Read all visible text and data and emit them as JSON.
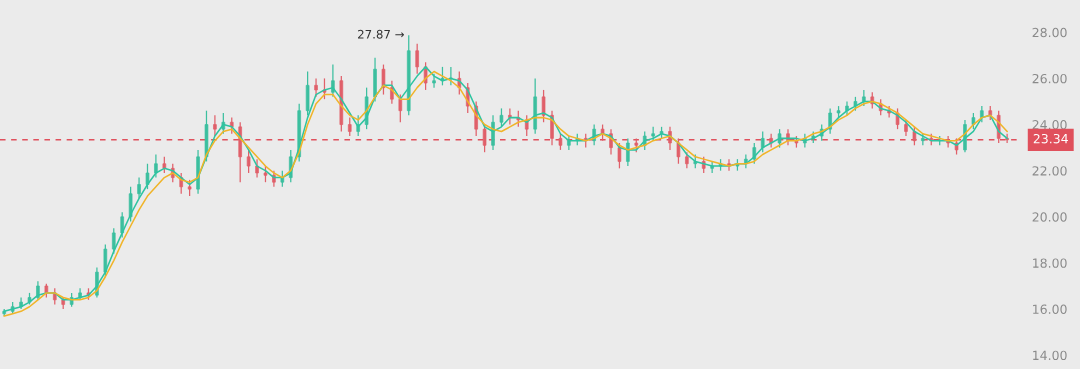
{
  "chart_data": {
    "type": "candlestick",
    "categories": [
      null,
      null,
      null,
      null,
      null,
      null,
      null,
      null,
      null,
      null,
      null,
      null,
      null,
      null,
      null,
      null,
      null,
      null,
      null,
      null,
      null,
      null,
      null,
      null,
      null,
      null,
      null,
      null,
      null,
      null,
      null,
      null,
      null,
      null,
      null,
      null,
      null,
      null,
      null,
      null,
      null,
      null,
      null,
      null,
      null,
      null,
      null,
      null,
      null,
      null,
      null,
      null,
      null,
      null,
      null,
      null,
      null,
      null,
      null,
      null,
      null,
      null,
      null,
      null,
      null,
      null,
      null,
      null,
      null,
      null,
      null,
      null,
      null,
      null,
      null,
      null,
      null,
      null,
      null,
      null,
      null,
      null,
      null,
      null,
      null,
      null,
      null,
      null,
      null,
      null,
      null,
      null,
      null,
      null,
      null,
      null,
      null,
      null,
      null,
      null,
      null,
      null,
      null,
      null,
      null,
      null,
      null,
      null,
      null,
      null,
      null,
      null,
      null,
      null,
      null,
      null,
      null,
      null,
      null,
      null
    ],
    "ohlc": [
      [
        15.8,
        16.0,
        15.7,
        15.9
      ],
      [
        15.9,
        16.3,
        15.8,
        16.1
      ],
      [
        16.1,
        16.5,
        16.0,
        16.3
      ],
      [
        16.3,
        16.7,
        16.2,
        16.5
      ],
      [
        16.5,
        17.2,
        16.4,
        17.0
      ],
      [
        17.0,
        17.1,
        16.5,
        16.7
      ],
      [
        16.7,
        16.9,
        16.2,
        16.4
      ],
      [
        16.4,
        16.5,
        16.0,
        16.2
      ],
      [
        16.2,
        16.7,
        16.1,
        16.5
      ],
      [
        16.5,
        16.9,
        16.4,
        16.7
      ],
      [
        16.7,
        16.9,
        16.4,
        16.6
      ],
      [
        16.6,
        17.8,
        16.5,
        17.6
      ],
      [
        17.6,
        18.8,
        17.4,
        18.6
      ],
      [
        18.6,
        19.5,
        18.4,
        19.3
      ],
      [
        19.3,
        20.2,
        19.1,
        20.0
      ],
      [
        20.0,
        21.3,
        19.8,
        21.0
      ],
      [
        21.0,
        21.7,
        20.8,
        21.4
      ],
      [
        21.4,
        22.3,
        21.2,
        21.9
      ],
      [
        21.9,
        22.7,
        21.7,
        22.3
      ],
      [
        22.3,
        22.6,
        21.9,
        22.1
      ],
      [
        22.1,
        22.3,
        21.5,
        21.7
      ],
      [
        21.7,
        21.9,
        21.0,
        21.3
      ],
      [
        21.3,
        21.6,
        20.9,
        21.2
      ],
      [
        21.2,
        22.9,
        21.0,
        22.6
      ],
      [
        22.6,
        24.6,
        22.4,
        24.0
      ],
      [
        24.0,
        24.4,
        23.5,
        23.8
      ],
      [
        23.8,
        24.5,
        23.6,
        24.1
      ],
      [
        24.1,
        24.3,
        23.6,
        23.9
      ],
      [
        23.9,
        24.1,
        21.5,
        22.6
      ],
      [
        22.6,
        22.9,
        21.9,
        22.2
      ],
      [
        22.2,
        22.5,
        21.7,
        21.9
      ],
      [
        21.9,
        22.2,
        21.5,
        21.8
      ],
      [
        21.8,
        22.0,
        21.3,
        21.5
      ],
      [
        21.5,
        22.0,
        21.3,
        21.7
      ],
      [
        21.7,
        22.9,
        21.5,
        22.6
      ],
      [
        22.6,
        24.9,
        22.4,
        24.6
      ],
      [
        24.6,
        26.3,
        24.4,
        25.7
      ],
      [
        25.7,
        26.0,
        25.2,
        25.5
      ],
      [
        25.5,
        26.0,
        25.1,
        25.4
      ],
      [
        25.4,
        26.6,
        25.2,
        25.9
      ],
      [
        25.9,
        26.1,
        23.7,
        24.0
      ],
      [
        24.0,
        24.3,
        23.5,
        23.7
      ],
      [
        23.7,
        24.4,
        23.5,
        24.0
      ],
      [
        24.0,
        25.6,
        23.8,
        25.2
      ],
      [
        25.2,
        26.9,
        25.0,
        26.4
      ],
      [
        26.4,
        26.6,
        25.3,
        25.6
      ],
      [
        25.6,
        25.9,
        24.9,
        25.1
      ],
      [
        25.1,
        25.3,
        24.1,
        24.6
      ],
      [
        24.6,
        27.87,
        24.4,
        27.2
      ],
      [
        27.2,
        27.5,
        26.2,
        26.5
      ],
      [
        26.5,
        26.7,
        25.5,
        25.8
      ],
      [
        25.8,
        26.2,
        25.6,
        25.9
      ],
      [
        25.9,
        26.5,
        25.7,
        26.0
      ],
      [
        26.0,
        26.5,
        25.7,
        26.0
      ],
      [
        26.0,
        26.3,
        25.3,
        25.6
      ],
      [
        25.6,
        25.8,
        24.5,
        24.8
      ],
      [
        24.8,
        25.0,
        23.5,
        23.8
      ],
      [
        23.8,
        24.0,
        22.8,
        23.1
      ],
      [
        23.1,
        24.4,
        22.9,
        24.1
      ],
      [
        24.1,
        24.7,
        23.9,
        24.4
      ],
      [
        24.4,
        24.7,
        24.0,
        24.3
      ],
      [
        24.3,
        24.6,
        23.9,
        24.2
      ],
      [
        24.2,
        24.4,
        23.5,
        23.8
      ],
      [
        23.8,
        26.0,
        23.6,
        25.2
      ],
      [
        25.2,
        25.5,
        24.1,
        24.4
      ],
      [
        24.4,
        24.6,
        23.1,
        23.4
      ],
      [
        23.4,
        23.6,
        22.9,
        23.1
      ],
      [
        23.1,
        23.5,
        22.9,
        23.3
      ],
      [
        23.3,
        23.6,
        23.1,
        23.4
      ],
      [
        23.4,
        23.6,
        23.0,
        23.3
      ],
      [
        23.3,
        24.0,
        23.1,
        23.8
      ],
      [
        23.8,
        24.0,
        23.3,
        23.6
      ],
      [
        23.6,
        23.8,
        22.7,
        23.0
      ],
      [
        23.0,
        23.2,
        22.1,
        22.4
      ],
      [
        22.4,
        23.4,
        22.2,
        23.2
      ],
      [
        23.2,
        23.4,
        22.8,
        23.1
      ],
      [
        23.1,
        23.7,
        22.9,
        23.5
      ],
      [
        23.5,
        23.9,
        23.3,
        23.6
      ],
      [
        23.6,
        23.9,
        23.4,
        23.7
      ],
      [
        23.7,
        23.9,
        22.9,
        23.2
      ],
      [
        23.2,
        23.4,
        22.3,
        22.6
      ],
      [
        22.6,
        22.8,
        22.1,
        22.3
      ],
      [
        22.3,
        22.7,
        22.1,
        22.4
      ],
      [
        22.4,
        22.6,
        21.9,
        22.1
      ],
      [
        22.1,
        22.4,
        21.9,
        22.2
      ],
      [
        22.2,
        22.5,
        22.0,
        22.3
      ],
      [
        22.3,
        22.5,
        22.0,
        22.2
      ],
      [
        22.2,
        22.5,
        22.0,
        22.3
      ],
      [
        22.3,
        22.7,
        22.1,
        22.5
      ],
      [
        22.5,
        23.2,
        22.3,
        23.0
      ],
      [
        23.0,
        23.7,
        22.8,
        23.4
      ],
      [
        23.4,
        23.6,
        23.0,
        23.2
      ],
      [
        23.2,
        23.8,
        23.0,
        23.6
      ],
      [
        23.6,
        23.8,
        23.1,
        23.3
      ],
      [
        23.3,
        23.5,
        23.0,
        23.2
      ],
      [
        23.2,
        23.6,
        23.0,
        23.4
      ],
      [
        23.4,
        23.7,
        23.2,
        23.5
      ],
      [
        23.5,
        24.0,
        23.3,
        23.8
      ],
      [
        23.8,
        24.7,
        23.6,
        24.5
      ],
      [
        24.5,
        24.8,
        24.3,
        24.6
      ],
      [
        24.6,
        25.0,
        24.4,
        24.8
      ],
      [
        24.8,
        25.2,
        24.6,
        25.0
      ],
      [
        25.0,
        25.5,
        24.8,
        25.2
      ],
      [
        25.2,
        25.4,
        24.7,
        24.9
      ],
      [
        24.9,
        25.1,
        24.4,
        24.6
      ],
      [
        24.6,
        24.8,
        24.3,
        24.5
      ],
      [
        24.5,
        24.7,
        23.8,
        24.0
      ],
      [
        24.0,
        24.2,
        23.5,
        23.7
      ],
      [
        23.7,
        23.9,
        23.1,
        23.3
      ],
      [
        23.3,
        23.6,
        23.1,
        23.4
      ],
      [
        23.4,
        23.6,
        23.1,
        23.3
      ],
      [
        23.3,
        23.5,
        23.1,
        23.3
      ],
      [
        23.3,
        23.5,
        23.0,
        23.2
      ],
      [
        23.2,
        23.4,
        22.7,
        22.9
      ],
      [
        22.9,
        24.2,
        22.8,
        24.0
      ],
      [
        24.0,
        24.5,
        23.8,
        24.3
      ],
      [
        24.3,
        24.8,
        24.1,
        24.6
      ],
      [
        24.6,
        24.8,
        24.2,
        24.4
      ],
      [
        24.4,
        24.6,
        23.2,
        23.4
      ],
      [
        23.4,
        23.6,
        23.2,
        23.34
      ]
    ],
    "series": [
      {
        "type": "line",
        "color": "#2ec4a0",
        "values": [
          15.9,
          16.0,
          16.1,
          16.3,
          16.6,
          16.7,
          16.7,
          16.4,
          16.4,
          16.5,
          16.6,
          17.0,
          17.6,
          18.5,
          19.3,
          20.1,
          20.8,
          21.4,
          21.9,
          22.1,
          22.0,
          21.7,
          21.4,
          21.7,
          22.6,
          23.5,
          24.0,
          23.9,
          23.5,
          22.9,
          22.2,
          22.0,
          21.7,
          21.7,
          21.9,
          23.0,
          24.3,
          25.3,
          25.5,
          25.6,
          25.1,
          24.5,
          23.9,
          24.3,
          25.2,
          25.7,
          25.7,
          25.1,
          25.6,
          26.1,
          26.5,
          26.1,
          25.9,
          26.0,
          25.9,
          25.5,
          24.7,
          23.9,
          23.7,
          23.9,
          24.3,
          24.3,
          24.1,
          24.4,
          24.5,
          24.3,
          23.6,
          23.3,
          23.3,
          23.3,
          23.5,
          23.6,
          23.5,
          23.0,
          22.9,
          22.9,
          23.3,
          23.4,
          23.6,
          23.5,
          23.2,
          22.7,
          22.4,
          22.3,
          22.2,
          22.2,
          22.2,
          22.3,
          22.3,
          22.6,
          23.0,
          23.2,
          23.4,
          23.4,
          23.4,
          23.3,
          23.4,
          23.6,
          23.9,
          24.3,
          24.6,
          24.8,
          25.0,
          25.0,
          24.7,
          24.6,
          24.4,
          24.1,
          23.7,
          23.5,
          23.3,
          23.3,
          23.3,
          23.1,
          23.4,
          23.7,
          24.3,
          24.4,
          23.7,
          23.4
        ]
      },
      {
        "type": "line",
        "color": "#f0b429",
        "values": [
          15.7,
          15.8,
          15.9,
          16.1,
          16.4,
          16.7,
          16.7,
          16.5,
          16.4,
          16.4,
          16.5,
          16.8,
          17.4,
          18.1,
          18.9,
          19.6,
          20.3,
          20.9,
          21.3,
          21.7,
          21.9,
          21.6,
          21.5,
          21.7,
          22.7,
          23.3,
          23.7,
          23.8,
          23.4,
          23.0,
          22.6,
          22.2,
          21.9,
          21.7,
          22.0,
          22.8,
          24.0,
          24.9,
          25.3,
          25.3,
          24.8,
          24.4,
          24.2,
          24.6,
          25.2,
          25.7,
          25.5,
          25.1,
          25.1,
          25.6,
          26.0,
          26.3,
          26.1,
          25.9,
          25.6,
          25.0,
          24.4,
          24.0,
          23.8,
          23.7,
          23.9,
          24.1,
          24.2,
          24.3,
          24.3,
          24.2,
          23.8,
          23.5,
          23.4,
          23.3,
          23.4,
          23.6,
          23.4,
          23.1,
          22.9,
          23.0,
          23.1,
          23.3,
          23.4,
          23.5,
          23.2,
          22.9,
          22.6,
          22.5,
          22.4,
          22.3,
          22.2,
          22.3,
          22.3,
          22.4,
          22.7,
          22.9,
          23.1,
          23.3,
          23.3,
          23.4,
          23.6,
          23.7,
          23.9,
          24.2,
          24.4,
          24.7,
          24.9,
          25.0,
          24.9,
          24.7,
          24.5,
          24.2,
          23.9,
          23.6,
          23.5,
          23.4,
          23.3,
          23.3,
          23.6,
          24.0,
          24.3,
          24.4,
          24.1,
          23.7
        ]
      }
    ],
    "ylim": [
      13.4,
      29.4
    ],
    "yticks": [
      {
        "value": 14,
        "label": "14.00"
      },
      {
        "value": 16,
        "label": "16.00"
      },
      {
        "value": 18,
        "label": "18.00"
      },
      {
        "value": 20,
        "label": "20.00"
      },
      {
        "value": 22,
        "label": "22.00"
      },
      {
        "value": 24,
        "label": "24.00"
      },
      {
        "value": 26,
        "label": "26.00"
      },
      {
        "value": 28,
        "label": "28.00"
      }
    ],
    "tick_labels": "y",
    "ref_lines": [
      {
        "axis": "y",
        "value": 23.34,
        "label": "23.34",
        "color": "#e0505c",
        "line_style": "dashed"
      }
    ],
    "annotations": [
      "27.87 →"
    ]
  }
}
